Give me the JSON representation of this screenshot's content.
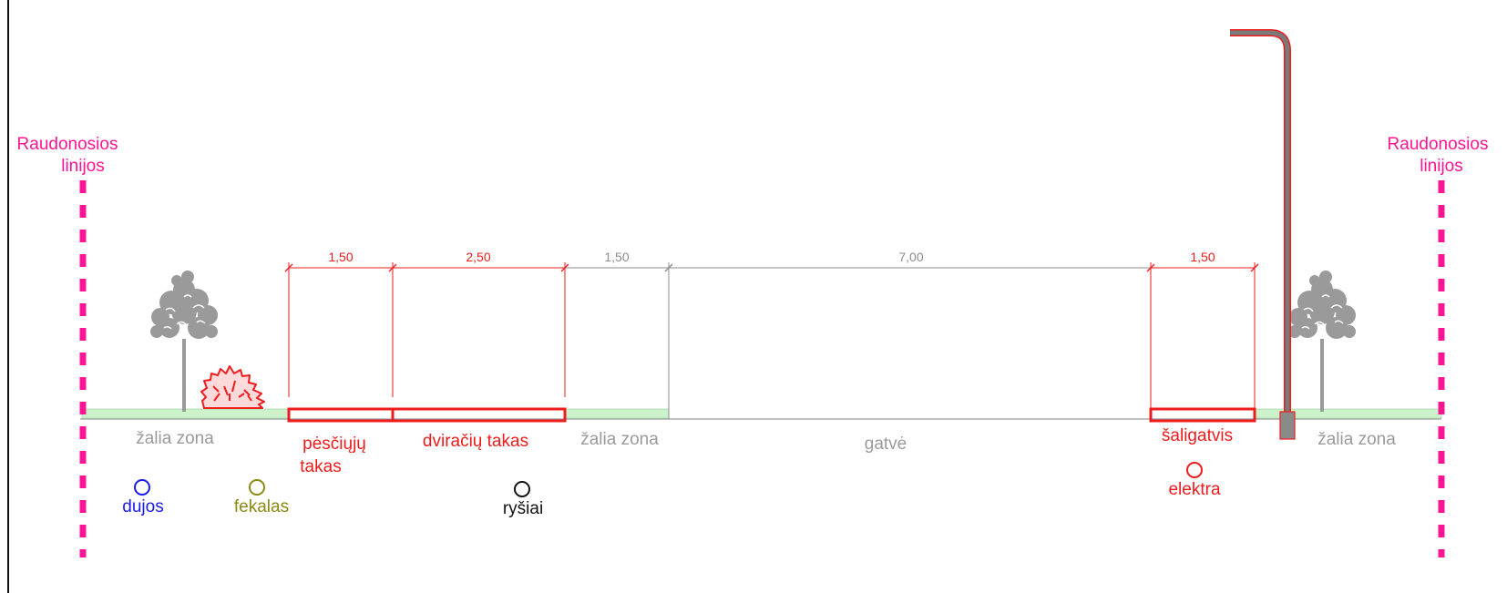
{
  "red_lines": {
    "left_label": [
      "Raudonosios",
      "linijos"
    ],
    "right_label": [
      "Raudonosios",
      "linijos"
    ]
  },
  "dimensions": [
    {
      "label": "1,50",
      "color": "#ee1c1c"
    },
    {
      "label": "2,50",
      "color": "#ee1c1c"
    },
    {
      "label": "1,50",
      "color": "#8c8c8c"
    },
    {
      "label": "7,00",
      "color": "#8c8c8c"
    },
    {
      "label": "1,50",
      "color": "#ee1c1c"
    }
  ],
  "zones": {
    "green_left": "žalia zona",
    "pedestrian": [
      "pėsčiųjų",
      "takas"
    ],
    "bike": "dviračių takas",
    "green_mid": "žalia zona",
    "street": "gatvė",
    "sidewalk": "šaligatvis",
    "green_right": "žalia zona"
  },
  "utilities": [
    {
      "label": "dujos",
      "color": "#1a1aee"
    },
    {
      "label": "fekalas",
      "color": "#8a8a14"
    },
    {
      "label": "ryšiai",
      "color": "#111111"
    },
    {
      "label": "elektra",
      "color": "#ee1c1c"
    }
  ],
  "colors": {
    "red_line": "#ff1493",
    "path": "#ee1c1c",
    "green_zone": "#ccf2cc",
    "grey": "#8c8c8c",
    "tree": "#9a9a9a"
  },
  "icons": [
    "tree-icon",
    "shrub-icon",
    "street-lamp-icon"
  ]
}
